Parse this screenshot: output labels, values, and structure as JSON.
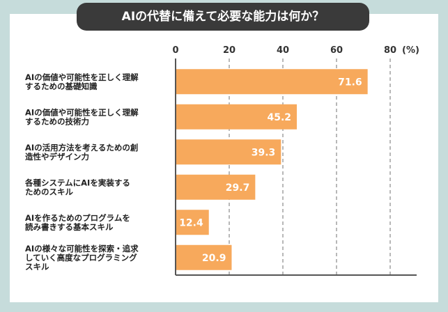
{
  "colors": {
    "background": "#c6dcdb",
    "bar": "#f7a95c",
    "title_bg": "#3a3a3a",
    "gridline": "#888888",
    "axis": "#555555"
  },
  "chart_data": {
    "type": "bar",
    "orientation": "horizontal",
    "title": "AIの代替に備えて必要な能力は何か？",
    "unit": "(%)",
    "xlim": [
      0,
      80
    ],
    "ticks": [
      0,
      20,
      40,
      60,
      80
    ],
    "grid": true,
    "categories": [
      [
        "AIの価値や可能性を正しく理解",
        "するための基礎知識"
      ],
      [
        "AIの価値や可能性を正しく理解",
        "するための技術力"
      ],
      [
        "AIの活用方法を考えるための創",
        "造性やデザイン力"
      ],
      [
        "各種システムにAIを実装する",
        "ためのスキル"
      ],
      [
        "AIを作るためのプログラムを",
        "読み書きする基本スキル"
      ],
      [
        "AIの様々な可能性を探索・追求",
        "していく高度なプログラミング",
        "スキル"
      ]
    ],
    "values": [
      71.6,
      45.2,
      39.3,
      29.7,
      12.4,
      20.9
    ]
  }
}
